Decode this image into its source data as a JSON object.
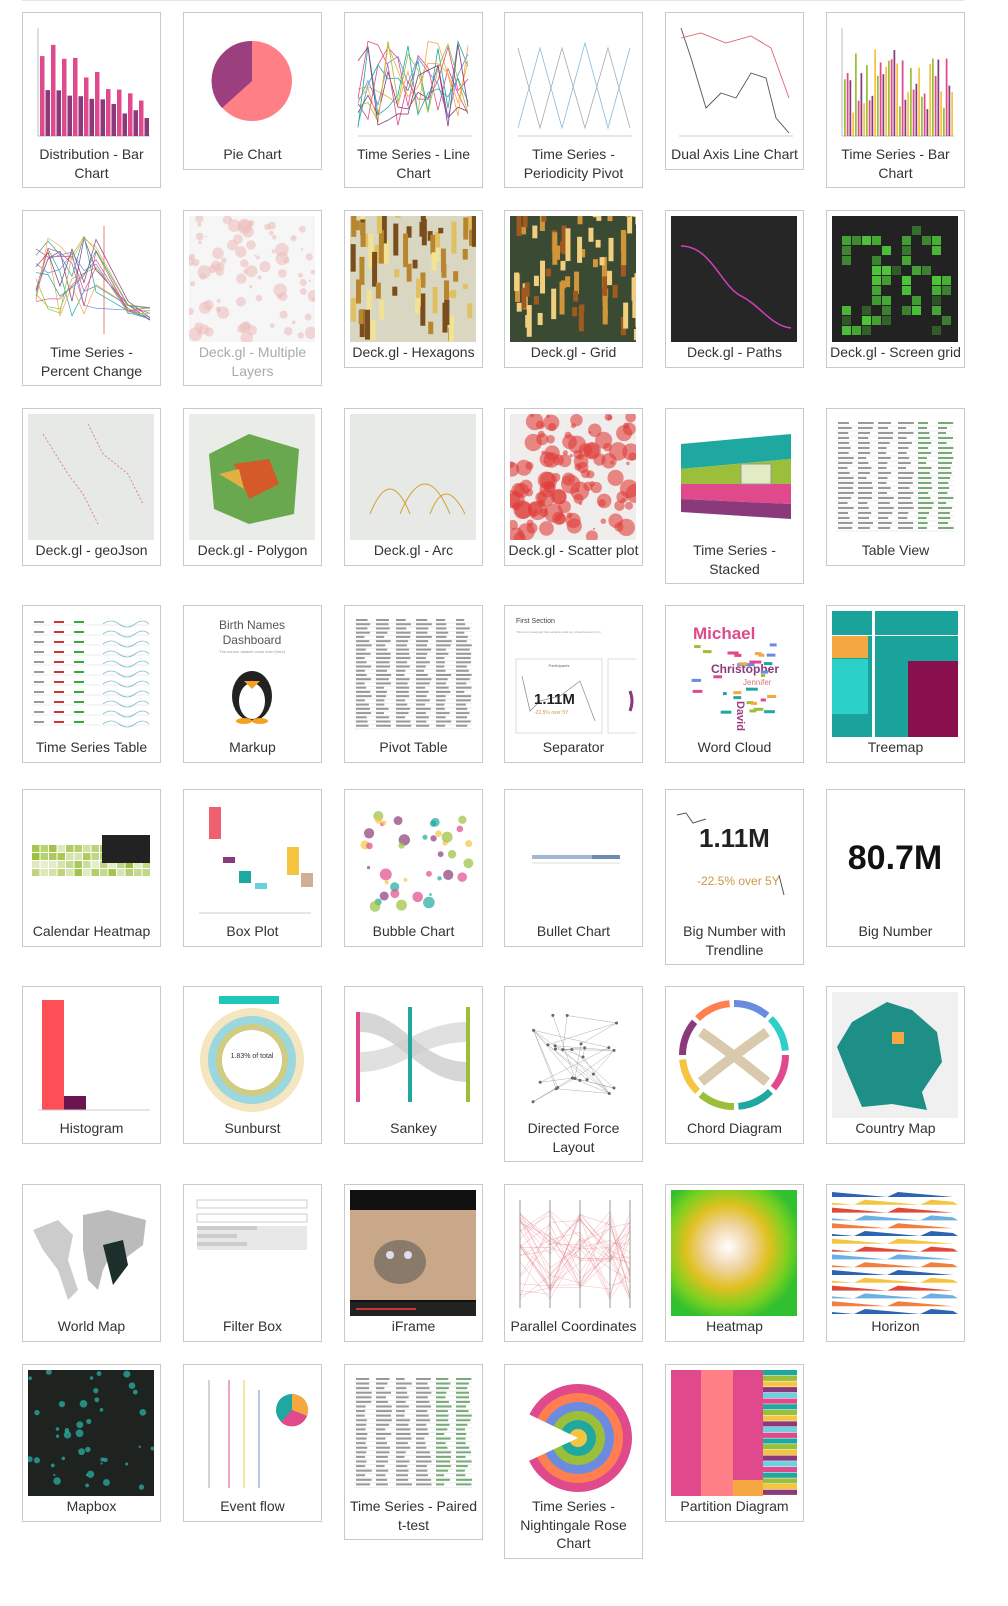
{
  "gallery": {
    "charts": [
      {
        "label": "Distribution - Bar Chart",
        "icon": "bar-chart-icon"
      },
      {
        "label": "Pie Chart",
        "icon": "pie-chart-icon"
      },
      {
        "label": "Time Series - Line Chart",
        "icon": "line-chart-icon"
      },
      {
        "label": "Time Series - Periodicity Pivot",
        "icon": "line-chart-icon"
      },
      {
        "label": "Dual Axis Line Chart",
        "icon": "line-chart-icon"
      },
      {
        "label": "Time Series - Bar Chart",
        "icon": "bar-chart-icon"
      },
      {
        "label": "Time Series - Percent Change",
        "icon": "line-chart-icon"
      },
      {
        "label": "Deck.gl - Multiple Layers",
        "icon": "map-icon",
        "disabled": true
      },
      {
        "label": "Deck.gl - Hexagons",
        "icon": "map-3d-icon"
      },
      {
        "label": "Deck.gl - Grid",
        "icon": "map-3d-icon"
      },
      {
        "label": "Deck.gl - Paths",
        "icon": "map-dark-icon"
      },
      {
        "label": "Deck.gl - Screen grid",
        "icon": "map-dark-icon"
      },
      {
        "label": "Deck.gl - geoJson",
        "icon": "map-icon"
      },
      {
        "label": "Deck.gl - Polygon",
        "icon": "map-3d-icon"
      },
      {
        "label": "Deck.gl - Arc",
        "icon": "map-icon"
      },
      {
        "label": "Deck.gl - Scatter plot",
        "icon": "map-icon"
      },
      {
        "label": "Time Series - Stacked",
        "icon": "area-chart-icon"
      },
      {
        "label": "Table View",
        "icon": "table-icon"
      },
      {
        "label": "Time Series Table",
        "icon": "table-icon"
      },
      {
        "label": "Markup",
        "icon": "markup-icon",
        "thumb_title": "Birth Names Dashboard",
        "thumb_sub": "The source dataset came from [here]"
      },
      {
        "label": "Pivot Table",
        "icon": "table-icon"
      },
      {
        "label": "Separator",
        "icon": "separator-icon",
        "thumb_title": "First Section",
        "thumb_sub": "This is an paragraph that explains what you should expect to fin",
        "thumb_card": "Participants",
        "thumb_value": "1.11M",
        "thumb_delta": "-22.5% over 5Y"
      },
      {
        "label": "Word Cloud",
        "icon": "word-cloud-icon",
        "thumb_words": [
          "Michael",
          "Christopher",
          "Jennifer",
          "David"
        ]
      },
      {
        "label": "Treemap",
        "icon": "treemap-icon"
      },
      {
        "label": "Calendar Heatmap",
        "icon": "calendar-icon"
      },
      {
        "label": "Box Plot",
        "icon": "box-plot-icon"
      },
      {
        "label": "Bubble Chart",
        "icon": "bubble-chart-icon"
      },
      {
        "label": "Bullet Chart",
        "icon": "bullet-chart-icon"
      },
      {
        "label": "Big Number with Trendline",
        "icon": "big-number-icon",
        "thumb_value": "1.11M",
        "thumb_delta": "-22.5% over 5Y"
      },
      {
        "label": "Big Number",
        "icon": "big-number-icon",
        "thumb_value": "80.7M"
      },
      {
        "label": "Histogram",
        "icon": "histogram-icon"
      },
      {
        "label": "Sunburst",
        "icon": "sunburst-icon",
        "thumb_center": "1.83% of total"
      },
      {
        "label": "Sankey",
        "icon": "sankey-icon"
      },
      {
        "label": "Directed Force Layout",
        "icon": "network-icon"
      },
      {
        "label": "Chord Diagram",
        "icon": "chord-icon"
      },
      {
        "label": "Country Map",
        "icon": "country-map-icon"
      },
      {
        "label": "World Map",
        "icon": "world-map-icon"
      },
      {
        "label": "Filter Box",
        "icon": "filter-icon"
      },
      {
        "label": "iFrame",
        "icon": "iframe-icon"
      },
      {
        "label": "Parallel Coordinates",
        "icon": "parallel-icon"
      },
      {
        "label": "Heatmap",
        "icon": "heatmap-icon"
      },
      {
        "label": "Horizon",
        "icon": "horizon-icon"
      },
      {
        "label": "Mapbox",
        "icon": "mapbox-icon"
      },
      {
        "label": "Event flow",
        "icon": "event-flow-icon"
      },
      {
        "label": "Time Series - Paired t-test",
        "icon": "table-icon"
      },
      {
        "label": "Time Series - Nightingale Rose Chart",
        "icon": "rose-chart-icon"
      },
      {
        "label": "Partition Diagram",
        "icon": "partition-icon"
      }
    ]
  },
  "colors": {
    "pink": "#e04a8c",
    "plum": "#8a3a7a",
    "coral": "#ff7f87",
    "teal": "#1fa8a0",
    "olive": "#9bbf3a",
    "yellow": "#f5c542",
    "dark": "#2b2b2b",
    "mapbg": "#e8ece9"
  }
}
